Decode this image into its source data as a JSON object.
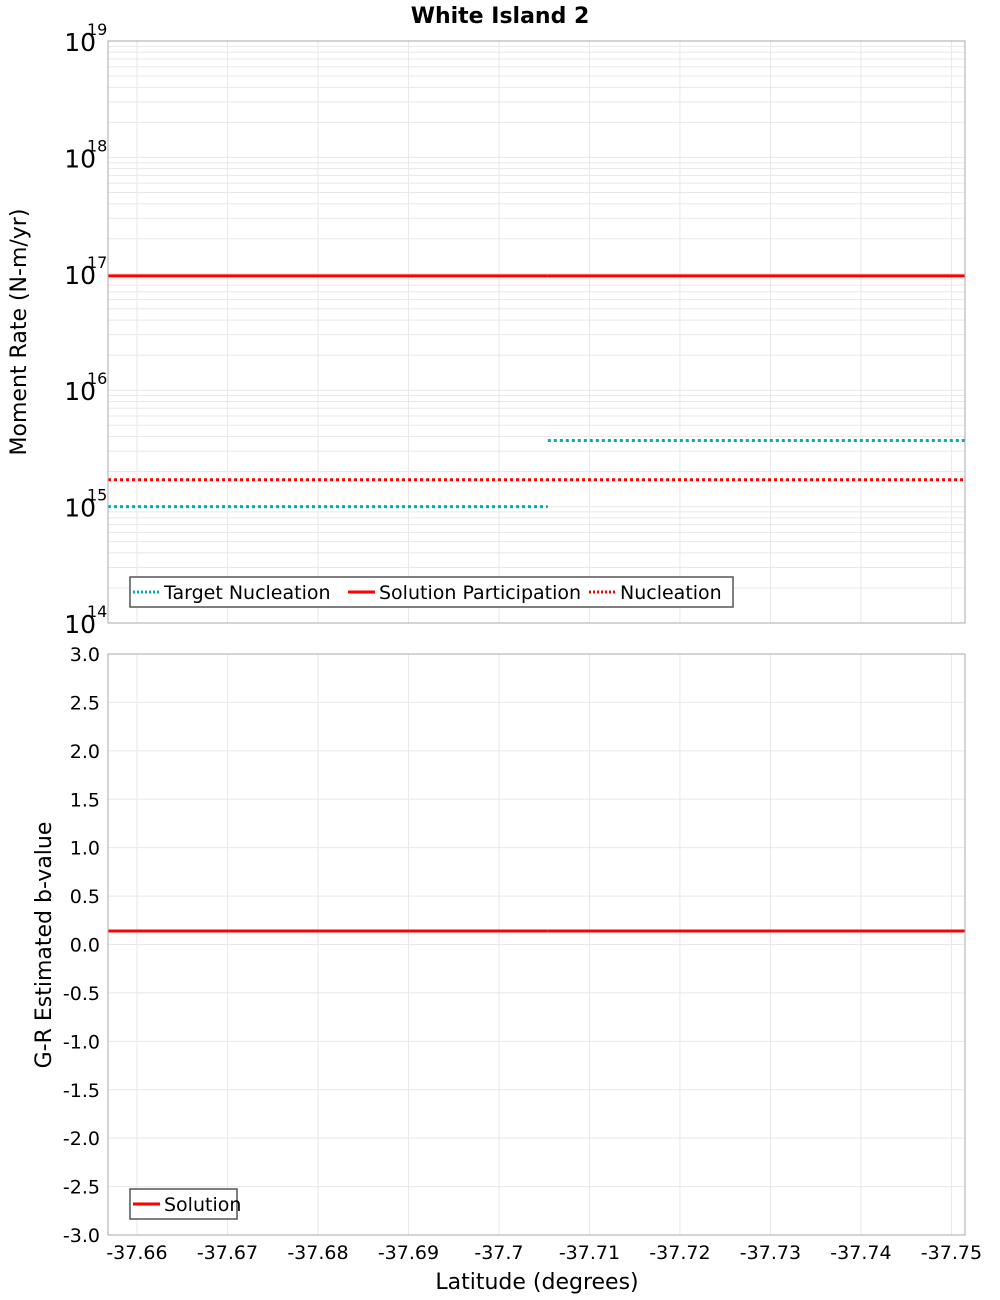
{
  "title": "White Island 2",
  "colors": {
    "solution": "#ff0000",
    "target_nucleation": "#00b0b0",
    "grid": "#e8e8e8",
    "frame": "#a8a8a8",
    "legend_border": "#555555"
  },
  "chart_data": [
    {
      "type": "line",
      "title": "White Island 2",
      "xlabel": "Latitude (degrees)",
      "ylabel": "Moment Rate (N-m/yr)",
      "yscale": "log",
      "ylim": [
        100000000000000.0,
        1e+19
      ],
      "xlim": [
        -37.6568,
        -37.7515
      ],
      "x_ticks": [
        "-37.66",
        "-37.67",
        "-37.68",
        "-37.69",
        "-37.7",
        "-37.71",
        "-37.72",
        "-37.73",
        "-37.74",
        "-37.75"
      ],
      "y_ticks": [
        {
          "base": "10",
          "exp": "14"
        },
        {
          "base": "10",
          "exp": "15"
        },
        {
          "base": "10",
          "exp": "16"
        },
        {
          "base": "10",
          "exp": "17"
        },
        {
          "base": "10",
          "exp": "18"
        },
        {
          "base": "10",
          "exp": "19"
        }
      ],
      "grid": true,
      "legend_position": "lower-left",
      "series": [
        {
          "name": "Target Nucleation",
          "style": "dotted",
          "color": "#00b0b0",
          "segments": [
            {
              "x": [
                -37.6568,
                -37.7054
              ],
              "y": [
                1000000000000000.0,
                1000000000000000.0
              ]
            },
            {
              "x": [
                -37.7054,
                -37.7515
              ],
              "y": [
                3700000000000000.0,
                3700000000000000.0
              ]
            }
          ]
        },
        {
          "name": "Solution Participation",
          "style": "solid",
          "color": "#ff0000",
          "segments": [
            {
              "x": [
                -37.6568,
                -37.7054
              ],
              "y": [
                9.6e+16,
                9.6e+16
              ]
            },
            {
              "x": [
                -37.7054,
                -37.7515
              ],
              "y": [
                9.6e+16,
                9.6e+16
              ]
            }
          ]
        },
        {
          "name": "Nucleation",
          "style": "dotted",
          "color": "#ff0000",
          "segments": [
            {
              "x": [
                -37.6568,
                -37.7515
              ],
              "y": [
                1700000000000000.0,
                1700000000000000.0
              ]
            }
          ]
        }
      ]
    },
    {
      "type": "line",
      "xlabel": "Latitude (degrees)",
      "ylabel": "G-R Estimated b-value",
      "yscale": "linear",
      "ylim": [
        -3.0,
        3.0
      ],
      "xlim": [
        -37.6568,
        -37.7515
      ],
      "x_ticks": [
        "-37.66",
        "-37.67",
        "-37.68",
        "-37.69",
        "-37.7",
        "-37.71",
        "-37.72",
        "-37.73",
        "-37.74",
        "-37.75"
      ],
      "y_ticks": [
        "3.0",
        "2.5",
        "2.0",
        "1.5",
        "1.0",
        "0.5",
        "0.0",
        "-0.5",
        "-1.0",
        "-1.5",
        "-2.0",
        "-2.5",
        "-3.0"
      ],
      "grid": true,
      "legend_position": "lower-left",
      "series": [
        {
          "name": "Solution",
          "style": "solid",
          "color": "#ff0000",
          "segments": [
            {
              "x": [
                -37.6568,
                -37.7054
              ],
              "y": [
                0.14,
                0.14
              ]
            },
            {
              "x": [
                -37.7054,
                -37.7515
              ],
              "y": [
                0.14,
                0.14
              ]
            }
          ]
        }
      ]
    }
  ]
}
